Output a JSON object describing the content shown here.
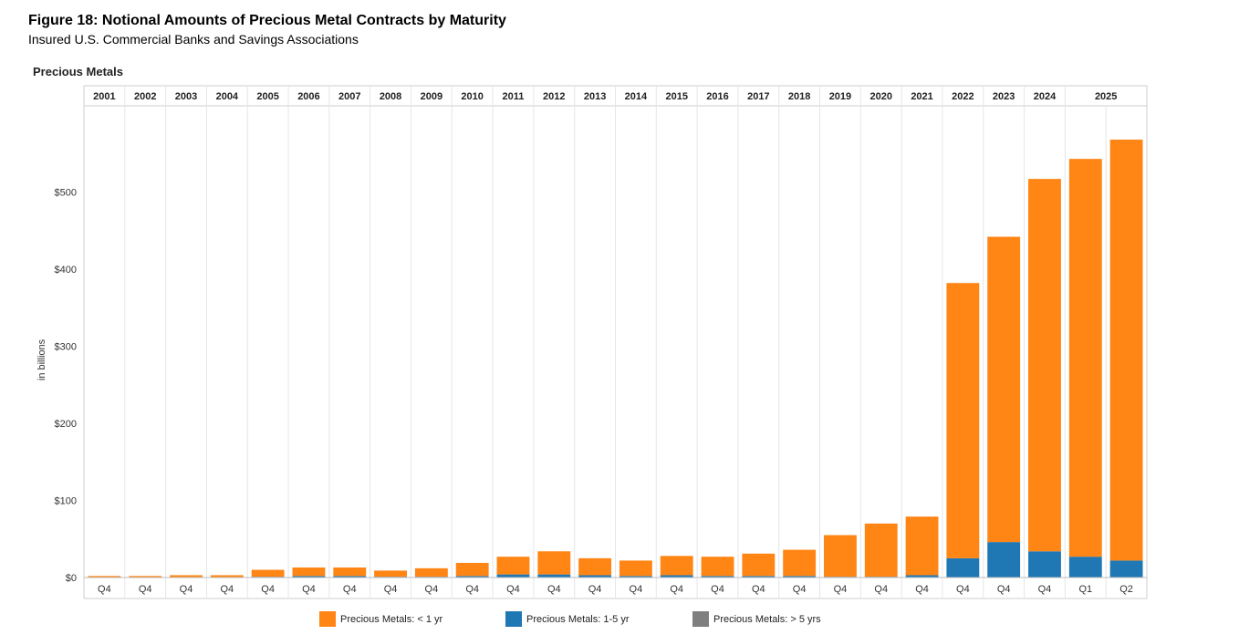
{
  "figure": {
    "title": "Figure 18: Notional Amounts of Precious Metal Contracts by Maturity",
    "subtitle": "Insured U.S. Commercial Banks and Savings Associations",
    "panel_label": "Precious Metals"
  },
  "colors": {
    "lt1yr": "#ff8514",
    "yr1to5": "#1f77b4",
    "gt5yr": "#7f7f7f",
    "grid": "#e6e6e6",
    "axis": "#cfcfcf"
  },
  "chart_data": {
    "type": "bar",
    "stacked": true,
    "ylabel": "in billions",
    "ylim": [
      0,
      600
    ],
    "yticks": [
      0,
      100,
      200,
      300,
      400,
      500
    ],
    "ytick_labels": [
      "$0",
      "$100",
      "$200",
      "$300",
      "$400",
      "$500"
    ],
    "grid": false,
    "legend_position": "bottom",
    "year_groups": [
      {
        "year": "2001",
        "quarters": [
          "Q4"
        ]
      },
      {
        "year": "2002",
        "quarters": [
          "Q4"
        ]
      },
      {
        "year": "2003",
        "quarters": [
          "Q4"
        ]
      },
      {
        "year": "2004",
        "quarters": [
          "Q4"
        ]
      },
      {
        "year": "2005",
        "quarters": [
          "Q4"
        ]
      },
      {
        "year": "2006",
        "quarters": [
          "Q4"
        ]
      },
      {
        "year": "2007",
        "quarters": [
          "Q4"
        ]
      },
      {
        "year": "2008",
        "quarters": [
          "Q4"
        ]
      },
      {
        "year": "2009",
        "quarters": [
          "Q4"
        ]
      },
      {
        "year": "2010",
        "quarters": [
          "Q4"
        ]
      },
      {
        "year": "2011",
        "quarters": [
          "Q4"
        ]
      },
      {
        "year": "2012",
        "quarters": [
          "Q4"
        ]
      },
      {
        "year": "2013",
        "quarters": [
          "Q4"
        ]
      },
      {
        "year": "2014",
        "quarters": [
          "Q4"
        ]
      },
      {
        "year": "2015",
        "quarters": [
          "Q4"
        ]
      },
      {
        "year": "2016",
        "quarters": [
          "Q4"
        ]
      },
      {
        "year": "2017",
        "quarters": [
          "Q4"
        ]
      },
      {
        "year": "2018",
        "quarters": [
          "Q4"
        ]
      },
      {
        "year": "2019",
        "quarters": [
          "Q4"
        ]
      },
      {
        "year": "2020",
        "quarters": [
          "Q4"
        ]
      },
      {
        "year": "2021",
        "quarters": [
          "Q4"
        ]
      },
      {
        "year": "2022",
        "quarters": [
          "Q4"
        ]
      },
      {
        "year": "2023",
        "quarters": [
          "Q4"
        ]
      },
      {
        "year": "2024",
        "quarters": [
          "Q4"
        ]
      },
      {
        "year": "2025",
        "quarters": [
          "Q1",
          "Q2"
        ]
      }
    ],
    "series": [
      {
        "name": "Precious Metals: < 1 yr",
        "values": [
          2,
          2,
          3,
          3,
          9,
          11,
          11,
          8,
          11,
          17,
          23,
          30,
          22,
          20,
          25,
          25,
          29,
          34,
          54,
          69,
          76,
          357,
          396,
          483,
          516,
          546
        ]
      },
      {
        "name": "Precious Metals: 1-5 yr",
        "values": [
          0,
          0,
          0,
          0,
          1,
          2,
          2,
          1,
          1,
          2,
          4,
          4,
          3,
          2,
          3,
          2,
          2,
          2,
          1,
          1,
          3,
          25,
          46,
          34,
          27,
          22
        ]
      },
      {
        "name": "Precious Metals: > 5 yrs",
        "values": [
          0,
          0,
          0,
          0,
          0,
          0,
          0,
          0,
          0,
          0,
          0,
          0,
          0,
          0,
          0,
          0,
          0,
          0,
          0,
          0,
          0,
          0,
          0,
          0,
          0,
          0
        ]
      }
    ]
  }
}
